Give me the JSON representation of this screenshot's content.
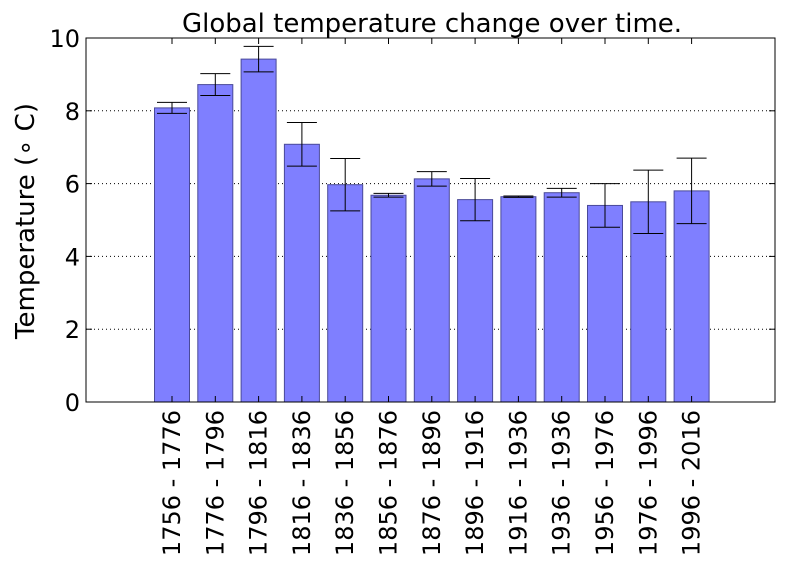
{
  "chart_data": {
    "type": "bar",
    "title": "Global temperature change over time.",
    "ylabel": "Temperature (∘ C)",
    "xlabel": "",
    "ylim": [
      0,
      10
    ],
    "yticks": [
      0,
      2,
      4,
      6,
      8,
      10
    ],
    "grid": true,
    "bar_color": "#7f7fff",
    "categories": [
      "1756 - 1776",
      "1776 - 1796",
      "1796 - 1816",
      "1816 - 1836",
      "1836 - 1856",
      "1856 - 1876",
      "1876 - 1896",
      "1896 - 1916",
      "1916 - 1936",
      "1936 - 1936",
      "1956 - 1976",
      "1976 - 1996",
      "1996 - 2016"
    ],
    "values": [
      8.08,
      8.72,
      9.42,
      7.08,
      5.97,
      5.68,
      6.13,
      5.56,
      5.64,
      5.75,
      5.4,
      5.5,
      5.8
    ],
    "errors": [
      0.15,
      0.3,
      0.35,
      0.6,
      0.72,
      0.05,
      0.2,
      0.58,
      0.02,
      0.12,
      0.6,
      0.87,
      0.9
    ]
  }
}
